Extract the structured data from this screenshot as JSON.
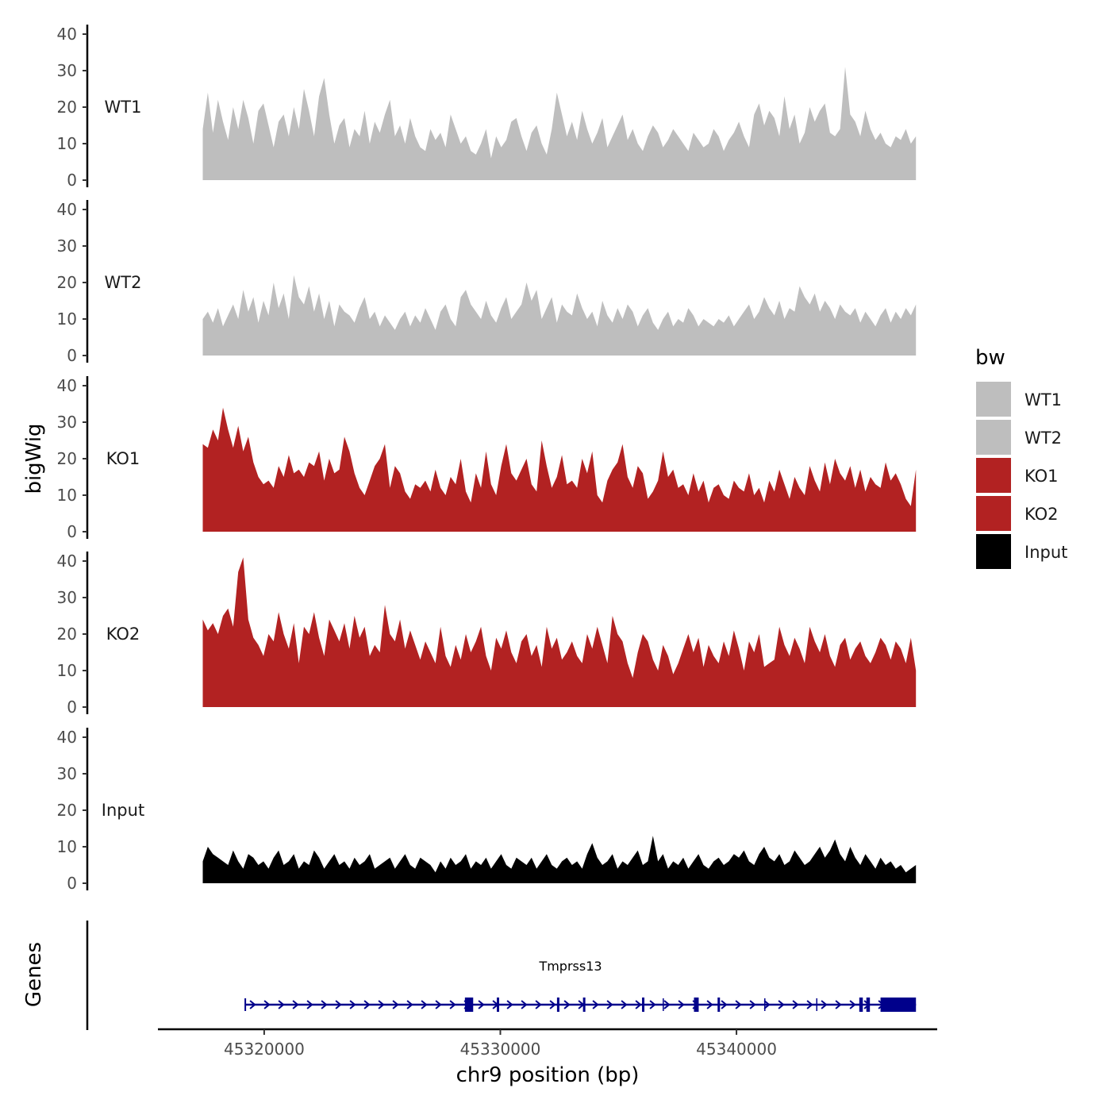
{
  "chart_data": {
    "type": "area",
    "chromosome": "chr9",
    "xlabel": "chr9 position (bp)",
    "ylabel": "bigWig",
    "genes_label": "Genes",
    "xlim": [
      45315500,
      45348500
    ],
    "x_range": [
      45317400,
      45347600
    ],
    "ylim": [
      0,
      42
    ],
    "y_ticks": [
      0,
      10,
      20,
      30,
      40
    ],
    "x_ticks": [
      45320000,
      45330000,
      45340000
    ],
    "x_tick_labels": [
      "45320000",
      "45330000",
      "45340000"
    ],
    "legend": {
      "title": "bw",
      "position": "right",
      "entries": [
        {
          "label": "WT1",
          "color": "#bebebe"
        },
        {
          "label": "WT2",
          "color": "#bebebe"
        },
        {
          "label": "KO1",
          "color": "#b22222"
        },
        {
          "label": "KO2",
          "color": "#b22222"
        },
        {
          "label": "Input",
          "color": "#000000"
        }
      ]
    },
    "series": [
      {
        "name": "WT1",
        "color": "#bebebe",
        "values": [
          14,
          24,
          13,
          22,
          16,
          11,
          20,
          14,
          22,
          17,
          10,
          19,
          21,
          15,
          9,
          16,
          18,
          12,
          20,
          14,
          25,
          19,
          12,
          23,
          28,
          18,
          10,
          15,
          17,
          9,
          14,
          12,
          19,
          10,
          16,
          13,
          18,
          22,
          12,
          15,
          10,
          17,
          12,
          9,
          8,
          14,
          11,
          13,
          9,
          18,
          14,
          10,
          12,
          8,
          7,
          10,
          14,
          6,
          12,
          9,
          11,
          16,
          17,
          12,
          8,
          13,
          15,
          10,
          7,
          14,
          24,
          18,
          12,
          16,
          11,
          19,
          14,
          10,
          13,
          17,
          9,
          12,
          15,
          18,
          11,
          14,
          10,
          8,
          12,
          15,
          13,
          9,
          11,
          14,
          12,
          10,
          8,
          13,
          11,
          9,
          10,
          14,
          12,
          8,
          11,
          13,
          16,
          12,
          9,
          18,
          21,
          15,
          19,
          17,
          12,
          23,
          14,
          18,
          10,
          13,
          20,
          16,
          19,
          21,
          13,
          12,
          14,
          31,
          18,
          16,
          12,
          19,
          14,
          11,
          13,
          10,
          9,
          12,
          11,
          14,
          10,
          12
        ]
      },
      {
        "name": "WT2",
        "color": "#bebebe",
        "values": [
          10,
          12,
          9,
          13,
          8,
          11,
          14,
          10,
          18,
          12,
          16,
          9,
          15,
          11,
          20,
          13,
          17,
          10,
          22,
          16,
          14,
          19,
          12,
          17,
          10,
          15,
          8,
          14,
          12,
          11,
          9,
          13,
          16,
          10,
          12,
          8,
          11,
          9,
          7,
          10,
          12,
          8,
          11,
          9,
          13,
          10,
          7,
          12,
          14,
          10,
          8,
          16,
          18,
          14,
          12,
          10,
          15,
          11,
          9,
          13,
          16,
          10,
          12,
          14,
          20,
          15,
          18,
          10,
          13,
          16,
          9,
          14,
          12,
          11,
          17,
          13,
          10,
          12,
          8,
          15,
          11,
          9,
          13,
          10,
          14,
          12,
          8,
          11,
          13,
          9,
          7,
          10,
          12,
          8,
          10,
          9,
          13,
          11,
          8,
          10,
          9,
          8,
          10,
          9,
          11,
          8,
          10,
          12,
          14,
          10,
          12,
          16,
          13,
          11,
          15,
          10,
          13,
          12,
          19,
          16,
          14,
          17,
          12,
          15,
          13,
          10,
          14,
          12,
          11,
          13,
          9,
          12,
          10,
          8,
          11,
          13,
          9,
          12,
          10,
          13,
          11,
          14
        ]
      },
      {
        "name": "KO1",
        "color": "#b22222",
        "values": [
          24,
          23,
          28,
          25,
          34,
          28,
          23,
          29,
          22,
          26,
          19,
          15,
          13,
          14,
          12,
          18,
          15,
          21,
          16,
          17,
          15,
          19,
          18,
          22,
          14,
          20,
          16,
          17,
          26,
          22,
          16,
          12,
          10,
          14,
          18,
          20,
          24,
          12,
          18,
          16,
          11,
          9,
          13,
          12,
          14,
          11,
          17,
          12,
          10,
          15,
          13,
          20,
          11,
          8,
          16,
          12,
          22,
          13,
          10,
          18,
          24,
          16,
          14,
          17,
          20,
          13,
          11,
          25,
          18,
          12,
          15,
          21,
          13,
          14,
          12,
          20,
          16,
          22,
          10,
          8,
          14,
          17,
          19,
          24,
          15,
          12,
          18,
          16,
          9,
          11,
          14,
          22,
          15,
          17,
          12,
          13,
          10,
          16,
          11,
          14,
          8,
          12,
          13,
          10,
          9,
          14,
          12,
          11,
          16,
          10,
          12,
          8,
          14,
          11,
          17,
          13,
          9,
          15,
          12,
          10,
          18,
          14,
          11,
          19,
          13,
          20,
          16,
          14,
          18,
          12,
          17,
          11,
          15,
          13,
          12,
          19,
          14,
          16,
          13,
          9,
          7,
          17
        ]
      },
      {
        "name": "KO2",
        "color": "#b22222",
        "values": [
          24,
          21,
          23,
          20,
          25,
          27,
          22,
          37,
          41,
          24,
          19,
          17,
          14,
          20,
          18,
          26,
          20,
          16,
          23,
          12,
          22,
          20,
          26,
          19,
          14,
          24,
          21,
          18,
          23,
          16,
          25,
          19,
          22,
          14,
          17,
          15,
          28,
          20,
          18,
          24,
          16,
          21,
          17,
          13,
          18,
          15,
          12,
          22,
          14,
          11,
          17,
          13,
          20,
          15,
          18,
          22,
          14,
          10,
          19,
          16,
          21,
          15,
          12,
          18,
          20,
          14,
          17,
          11,
          22,
          16,
          19,
          13,
          15,
          18,
          14,
          12,
          20,
          16,
          22,
          17,
          12,
          25,
          20,
          18,
          12,
          8,
          15,
          20,
          18,
          13,
          10,
          17,
          14,
          9,
          12,
          16,
          20,
          15,
          19,
          11,
          17,
          14,
          12,
          18,
          14,
          21,
          16,
          10,
          18,
          15,
          20,
          11,
          12,
          13,
          22,
          17,
          14,
          19,
          16,
          12,
          22,
          18,
          15,
          20,
          14,
          11,
          17,
          19,
          13,
          16,
          18,
          14,
          12,
          15,
          19,
          17,
          13,
          18,
          16,
          12,
          19,
          10
        ]
      },
      {
        "name": "Input",
        "color": "#000000",
        "values": [
          6,
          10,
          8,
          7,
          6,
          5,
          9,
          6,
          4,
          8,
          7,
          5,
          6,
          4,
          7,
          9,
          5,
          6,
          8,
          4,
          6,
          5,
          9,
          7,
          4,
          6,
          8,
          5,
          6,
          4,
          7,
          5,
          6,
          8,
          4,
          5,
          6,
          7,
          4,
          6,
          8,
          5,
          4,
          7,
          6,
          5,
          3,
          6,
          4,
          7,
          5,
          6,
          8,
          4,
          6,
          5,
          7,
          4,
          6,
          8,
          5,
          4,
          7,
          6,
          5,
          7,
          4,
          6,
          8,
          5,
          4,
          6,
          7,
          5,
          6,
          4,
          8,
          11,
          7,
          5,
          6,
          8,
          4,
          6,
          5,
          7,
          9,
          5,
          6,
          13,
          6,
          8,
          4,
          6,
          5,
          7,
          4,
          6,
          8,
          5,
          4,
          6,
          7,
          5,
          6,
          8,
          7,
          9,
          6,
          5,
          8,
          10,
          7,
          6,
          8,
          5,
          6,
          9,
          7,
          5,
          6,
          8,
          10,
          7,
          9,
          12,
          8,
          6,
          10,
          7,
          5,
          8,
          6,
          4,
          7,
          5,
          6,
          4,
          5,
          3,
          4,
          5
        ]
      }
    ],
    "gene": {
      "name": "Tmprss13",
      "strand": "+",
      "start": 45319200,
      "end": 45347600,
      "exons": [
        [
          45328500,
          45328850
        ],
        [
          45329850,
          45329950
        ],
        [
          45332400,
          45332500
        ],
        [
          45333500,
          45333600
        ],
        [
          45336000,
          45336100
        ],
        [
          45338200,
          45338400
        ],
        [
          45339200,
          45339300
        ],
        [
          45345200,
          45345350
        ],
        [
          45345500,
          45345650
        ],
        [
          45346100,
          45347600
        ]
      ],
      "introns_marks": [
        45336900,
        45341200,
        45343400
      ]
    }
  }
}
